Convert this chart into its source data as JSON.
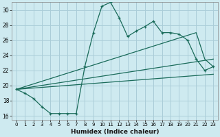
{
  "xlabel": "Humidex (Indice chaleur)",
  "background_color": "#ceeaf0",
  "grid_color": "#aacdd8",
  "line_color": "#1a6b5a",
  "xlim": [
    -0.5,
    23.5
  ],
  "ylim": [
    15.5,
    31.0
  ],
  "yticks": [
    16,
    18,
    20,
    22,
    24,
    26,
    28,
    30
  ],
  "xticks": [
    0,
    1,
    2,
    3,
    4,
    5,
    6,
    7,
    8,
    9,
    10,
    11,
    12,
    13,
    14,
    15,
    16,
    17,
    18,
    19,
    20,
    21,
    22,
    23
  ],
  "line1_x": [
    0,
    1,
    2,
    3,
    4,
    5,
    6,
    7,
    8,
    9,
    10,
    11,
    12,
    13,
    14,
    15,
    16,
    17,
    18,
    19,
    20,
    21,
    22,
    23
  ],
  "line1_y": [
    19.5,
    19.0,
    18.3,
    17.2,
    16.3,
    16.3,
    16.3,
    16.3,
    22.5,
    27.0,
    30.5,
    31.0,
    29.0,
    26.5,
    27.2,
    27.8,
    28.5,
    27.0,
    27.0,
    26.8,
    26.0,
    23.5,
    22.0,
    22.5
  ],
  "line2_x": [
    0,
    21,
    22,
    23
  ],
  "line2_y": [
    19.5,
    27.0,
    23.5,
    22.5
  ],
  "line3_x": [
    0,
    23
  ],
  "line3_y": [
    19.5,
    23.5
  ],
  "line4_x": [
    0,
    23
  ],
  "line4_y": [
    19.5,
    21.5
  ]
}
